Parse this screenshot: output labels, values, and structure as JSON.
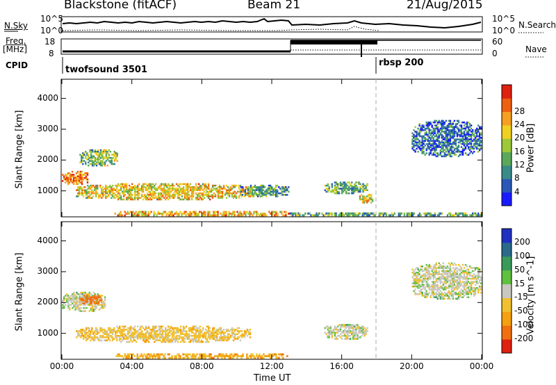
{
  "header": {
    "radar": "Blackstone (fitACF)",
    "beam": "Beam 21",
    "date": "21/Aug/2015"
  },
  "noise_panel": {
    "left_label": "N.Sky",
    "right_label": "N.Search",
    "left_ticks": [
      "10^5",
      "10^0"
    ],
    "right_ticks": [
      "10^5",
      "10^0"
    ]
  },
  "freq_panel": {
    "left_label_1": "Freq.",
    "left_label_2": "[MHz]",
    "left_ticks": [
      "18",
      "8"
    ],
    "right_label": "Nave",
    "right_ticks": [
      "60",
      "0"
    ]
  },
  "cpid_panel": {
    "label": "CPID",
    "modes": [
      {
        "name": "twofsound",
        "id": "3501"
      },
      {
        "name": "rbsp",
        "id": "200"
      }
    ]
  },
  "axes": {
    "ylabel": "Slant Range [km]",
    "xlabel": "Time UT",
    "y_ticks": [
      "1000",
      "2000",
      "3000",
      "4000"
    ],
    "x_ticks": [
      "00:00",
      "04:00",
      "08:00",
      "12:00",
      "16:00",
      "20:00",
      "00:00"
    ]
  },
  "power_colorbar": {
    "label": "Power [dB]",
    "ticks": [
      "4",
      "8",
      "12",
      "16",
      "20",
      "24",
      "28"
    ],
    "colors": [
      "#1a1aff",
      "#2a58b8",
      "#3a8a8a",
      "#5aa85a",
      "#9cc83a",
      "#f0d020",
      "#f5a020",
      "#ee6010",
      "#e02010"
    ]
  },
  "velocity_colorbar": {
    "label": "Velocity [m s^-1]",
    "ticks": [
      "200",
      "100",
      "50",
      "15",
      "-15",
      "-50",
      "-100",
      "-200"
    ],
    "colors": [
      "#2030c0",
      "#2a6a8a",
      "#3a9a5a",
      "#60c040",
      "#c8c8c0",
      "#f0c030",
      "#f5a010",
      "#f07010",
      "#e02010"
    ]
  },
  "chart_data": {
    "type": "heatmap",
    "title": "Blackstone (fitACF)  Beam 21  21/Aug/2015",
    "xlabel": "Time UT",
    "ylabel": "Slant Range [km]",
    "xlim": [
      "00:00",
      "24:00"
    ],
    "ylim": [
      180,
      4600
    ],
    "mode_switch_time_ut": "18:00",
    "scatter_regions_power": [
      {
        "t_start": 0.0,
        "t_end": 1.5,
        "r_start": 1200,
        "r_end": 1650,
        "level_db": 26
      },
      {
        "t_start": 1.0,
        "t_end": 3.2,
        "r_start": 1800,
        "r_end": 2350,
        "level_db": 14
      },
      {
        "t_start": 0.8,
        "t_end": 10.8,
        "r_start": 700,
        "r_end": 1250,
        "level_db": 20
      },
      {
        "t_start": 10.2,
        "t_end": 13.0,
        "r_start": 800,
        "r_end": 1200,
        "level_db": 10
      },
      {
        "t_start": 3.0,
        "t_end": 13.0,
        "r_start": 180,
        "r_end": 350,
        "level_db": 22
      },
      {
        "t_start": 13.0,
        "t_end": 24.0,
        "r_start": 180,
        "r_end": 300,
        "level_db": 12
      },
      {
        "t_start": 15.0,
        "t_end": 17.5,
        "r_start": 900,
        "r_end": 1300,
        "level_db": 12
      },
      {
        "t_start": 17.0,
        "t_end": 17.8,
        "r_start": 600,
        "r_end": 900,
        "level_db": 20
      },
      {
        "t_start": 20.0,
        "t_end": 24.0,
        "r_start": 2100,
        "r_end": 3300,
        "level_db": 6
      }
    ],
    "scatter_regions_velocity": [
      {
        "t_start": 0.0,
        "t_end": 2.5,
        "r_start": 1700,
        "r_end": 2350,
        "vel": 0
      },
      {
        "t_start": 1.0,
        "t_end": 2.3,
        "r_start": 1950,
        "r_end": 2250,
        "vel": -100
      },
      {
        "t_start": 0.8,
        "t_end": 10.8,
        "r_start": 700,
        "r_end": 1250,
        "vel": -30
      },
      {
        "t_start": 3.0,
        "t_end": 13.0,
        "r_start": 180,
        "r_end": 350,
        "vel": -50
      },
      {
        "t_start": 15.0,
        "t_end": 17.5,
        "r_start": 800,
        "r_end": 1300,
        "vel": 0
      },
      {
        "t_start": 20.0,
        "t_end": 24.0,
        "r_start": 2100,
        "r_end": 3300,
        "vel": 0
      }
    ]
  }
}
